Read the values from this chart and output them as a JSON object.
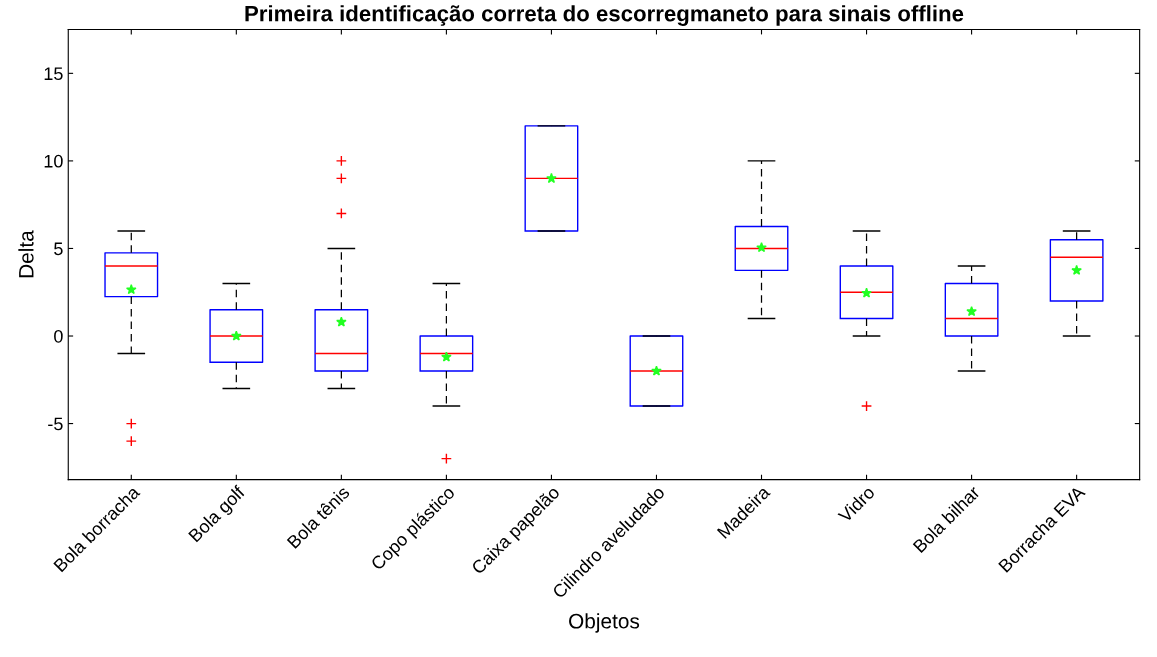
{
  "chart_data": {
    "type": "box",
    "title": "Primeira identificação correta do escorregmaneto para sinais offline",
    "xlabel": "Objetos",
    "ylabel": "Delta",
    "categories": [
      "Bola borracha",
      "Bola golf",
      "Bola tênis",
      "Copo plástico",
      "Caixa papelão",
      "Cilindro aveludado",
      "Madeira",
      "Vidro",
      "Bola bilhar",
      "Borracha EVA"
    ],
    "series": [
      {
        "color": "#0000ff",
        "boxes": [
          {
            "low": -1,
            "q1": 2.25,
            "median": 4,
            "q3": 4.75,
            "high": 6,
            "mean": 2.65,
            "outliers": [
              -5,
              -6
            ]
          },
          {
            "low": -3,
            "q1": -1.5,
            "median": 0,
            "q3": 1.5,
            "high": 3,
            "mean": 0
          },
          {
            "low": -3,
            "q1": -2,
            "median": -1,
            "q3": 1.5,
            "high": 5,
            "mean": 0.8,
            "outliers": [
              7,
              9,
              10
            ]
          },
          {
            "low": -4,
            "q1": -2,
            "median": -1,
            "q3": 0,
            "high": 3,
            "mean": -1.2,
            "outliers": [
              -7
            ]
          },
          {
            "low": 6,
            "q1": 6,
            "median": 9,
            "q3": 12,
            "high": 12,
            "mean": 9
          },
          {
            "low": -4,
            "q1": -4,
            "median": -2,
            "q3": 0,
            "high": 0,
            "mean": -2
          },
          {
            "low": 1,
            "q1": 3.75,
            "median": 5,
            "q3": 6.25,
            "high": 10,
            "mean": 5.05
          },
          {
            "low": 0,
            "q1": 1,
            "median": 2.5,
            "q3": 4,
            "high": 6,
            "mean": 2.45,
            "outliers": [
              -4
            ]
          },
          {
            "low": -2,
            "q1": 0,
            "median": 1,
            "q3": 3,
            "high": 4,
            "mean": 1.4
          },
          {
            "low": 0,
            "q1": 2,
            "median": 4.5,
            "q3": 5.5,
            "high": 6,
            "mean": 3.75
          }
        ]
      }
    ],
    "ylim": [
      -8.2,
      17.5
    ],
    "yticks": [
      -5,
      0,
      5,
      10,
      15
    ],
    "grid": false
  }
}
